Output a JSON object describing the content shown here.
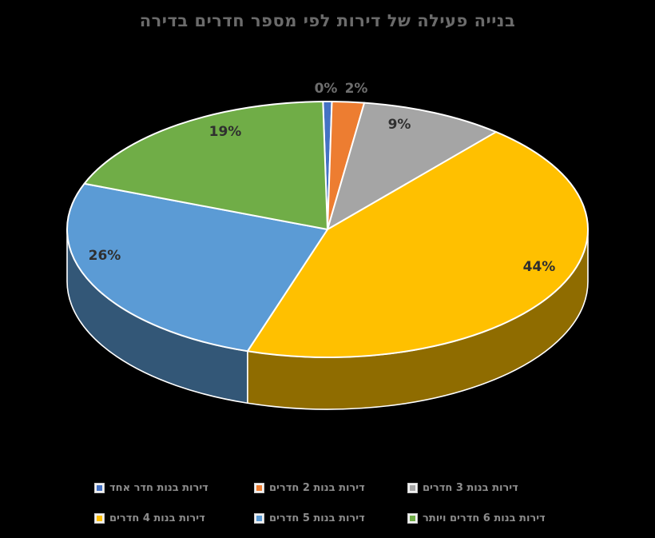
{
  "chart_data": {
    "type": "pie",
    "style": "3d",
    "title": "בנייה פעילה של דירות לפי מספר חדרים בדירה",
    "categories": [
      "דירות בנות חדר אחד",
      "דירות בנות 2 חדרים",
      "דירות בנות 3 חדרים",
      "דירות בנות 4 חדרים",
      "דירות בנות 5 חדרים",
      "דירות בנות 6 חדרים ויותר"
    ],
    "values": [
      0,
      2,
      9,
      44,
      26,
      19
    ],
    "data_labels": [
      "0%",
      "2%",
      "9%",
      "44%",
      "26%",
      "19%"
    ],
    "colors": [
      "#4472C4",
      "#ED7D31",
      "#A5A5A5",
      "#FFC000",
      "#5B9BD5",
      "#70AD47"
    ],
    "legend_position": "bottom",
    "background": "#000000",
    "title_color": "#6b6b6b",
    "outside_label_color": "#6e6e6e",
    "inside_label_color": "#2f2f2f"
  }
}
